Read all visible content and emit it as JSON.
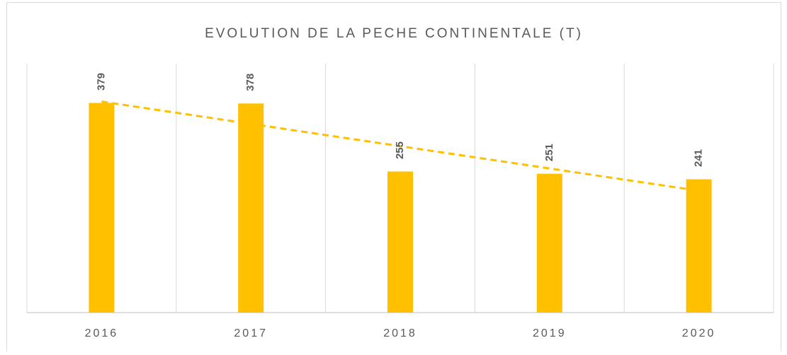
{
  "chart_data": {
    "type": "bar",
    "title": "EVOLUTION DE LA PECHE CONTINENTALE (T)",
    "categories": [
      "2016",
      "2017",
      "2018",
      "2019",
      "2020"
    ],
    "values": [
      379,
      378,
      255,
      251,
      241
    ],
    "color": "#ffc000",
    "ylim": [
      0,
      450
    ],
    "trendline": true,
    "data_labels": true
  }
}
